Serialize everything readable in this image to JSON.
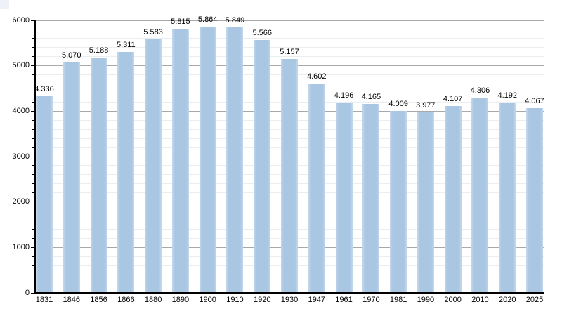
{
  "chart_data": {
    "type": "bar",
    "title": "",
    "xlabel": "",
    "ylabel": "",
    "categories": [
      "1831",
      "1846",
      "1856",
      "1866",
      "1880",
      "1890",
      "1900",
      "1910",
      "1920",
      "1930",
      "1947",
      "1961",
      "1970",
      "1981",
      "1990",
      "2000",
      "2010",
      "2020",
      "2025"
    ],
    "values": [
      4336,
      5070,
      5188,
      5311,
      5583,
      5815,
      5864,
      5849,
      5566,
      5157,
      4602,
      4196,
      4165,
      4009,
      3977,
      4107,
      4306,
      4192,
      4067
    ],
    "value_labels": [
      "4.336",
      "5.070",
      "5.188",
      "5.311",
      "5.583",
      "5.815",
      "5.864",
      "5.849",
      "5.566",
      "5.157",
      "4.602",
      "4.196",
      "4.165",
      "4.009",
      "3.977",
      "4.107",
      "4.306",
      "4.192",
      "4.067"
    ],
    "ylim": [
      0,
      6000
    ],
    "ytick_major": 1000,
    "ytick_minor": 200,
    "ytick_labels": [
      "0",
      "1000",
      "2000",
      "3000",
      "4000",
      "5000",
      "6000"
    ],
    "grid": true,
    "legend": "none",
    "colors": {
      "bar": "#a9c6e3",
      "bar_edge": "#c6d8ec",
      "grid_major": "#a9a9a9",
      "grid_minor": "#ebeef1",
      "axis": "#000000",
      "text": "#000000",
      "corner_artifact": "#eef2f8",
      "background": "#ffffff"
    }
  }
}
